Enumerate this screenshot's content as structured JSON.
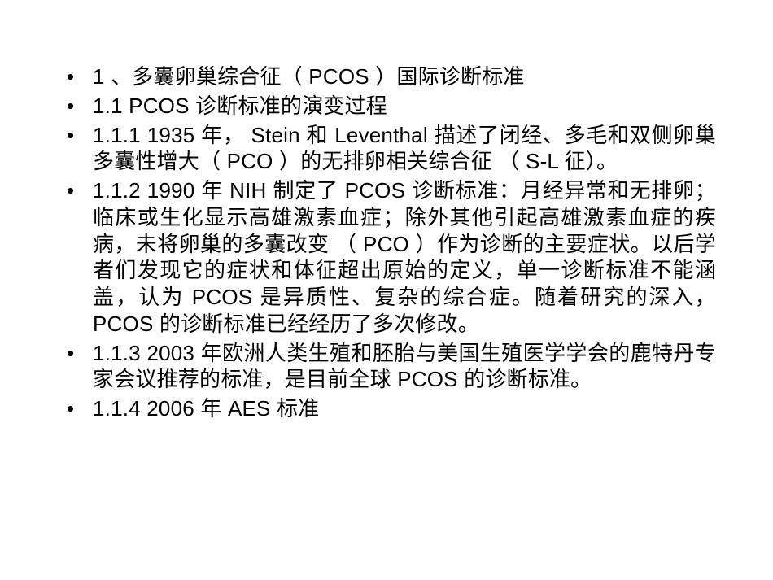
{
  "slide": {
    "background_color": "#ffffff",
    "text_color": "#000000",
    "font_size_pt": 20,
    "line_height": 1.26,
    "bullets": [
      "1 、多囊卵巢综合征（ PCOS ）国际诊断标准",
      "1.1 PCOS 诊断标准的演变过程",
      "1.1.1 1935 年， Stein 和 Leventhal 描述了闭经、多毛和双侧卵巢多囊性增大（ PCO ）的无排卵相关综合征 （ S-L 征）。",
      "1.1.2 1990 年 NIH 制定了 PCOS 诊断标准：月经异常和无排卵；临床或生化显示高雄激素血症；除外其他引起高雄激素血症的疾病，未将卵巢的多囊改变 （ PCO ）作为诊断的主要症状。以后学者们发现它的症状和体征超出原始的定义，单一诊断标准不能涵盖，认为 PCOS 是异质性、复杂的综合症。随着研究的深入， PCOS 的诊断标准已经经历了多次修改。",
      "1.1.3 2003 年欧洲人类生殖和胚胎与美国生殖医学学会的鹿特丹专家会议推荐的标准，是目前全球 PCOS 的诊断标准。",
      "1.1.4 2006 年 AES 标准"
    ]
  }
}
